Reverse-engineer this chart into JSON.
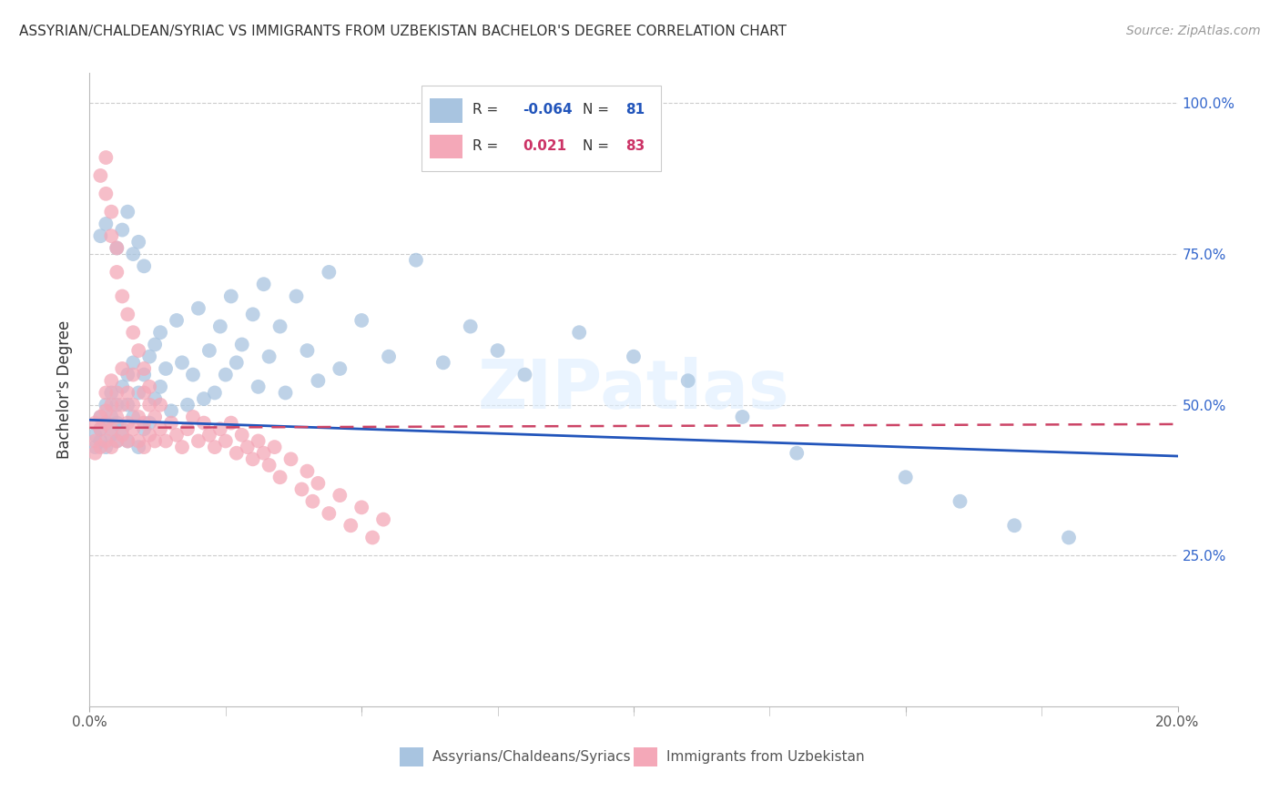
{
  "title": "ASSYRIAN/CHALDEAN/SYRIAC VS IMMIGRANTS FROM UZBEKISTAN BACHELOR'S DEGREE CORRELATION CHART",
  "source": "Source: ZipAtlas.com",
  "ylabel": "Bachelor's Degree",
  "blue_R": -0.064,
  "blue_N": 81,
  "pink_R": 0.021,
  "pink_N": 83,
  "blue_color": "#a8c4e0",
  "pink_color": "#f4a8b8",
  "blue_label": "Assyrians/Chaldeans/Syriacs",
  "pink_label": "Immigrants from Uzbekistan",
  "blue_line_color": "#2255bb",
  "pink_line_color": "#cc4466",
  "watermark": "ZIPatlas",
  "xlim": [
    0.0,
    0.2
  ],
  "ylim": [
    0.0,
    1.05
  ],
  "blue_x": [
    0.001,
    0.001,
    0.002,
    0.002,
    0.002,
    0.003,
    0.003,
    0.003,
    0.004,
    0.004,
    0.004,
    0.005,
    0.005,
    0.005,
    0.006,
    0.006,
    0.007,
    0.007,
    0.007,
    0.008,
    0.008,
    0.009,
    0.009,
    0.01,
    0.01,
    0.011,
    0.011,
    0.012,
    0.012,
    0.013,
    0.013,
    0.014,
    0.015,
    0.016,
    0.017,
    0.018,
    0.019,
    0.02,
    0.021,
    0.022,
    0.023,
    0.024,
    0.025,
    0.026,
    0.027,
    0.028,
    0.03,
    0.031,
    0.032,
    0.033,
    0.035,
    0.036,
    0.038,
    0.04,
    0.042,
    0.044,
    0.046,
    0.05,
    0.055,
    0.06,
    0.065,
    0.07,
    0.075,
    0.08,
    0.09,
    0.1,
    0.11,
    0.12,
    0.13,
    0.15,
    0.16,
    0.17,
    0.18,
    0.002,
    0.003,
    0.005,
    0.006,
    0.007,
    0.008,
    0.009,
    0.01
  ],
  "blue_y": [
    0.45,
    0.43,
    0.48,
    0.44,
    0.46,
    0.47,
    0.43,
    0.5,
    0.45,
    0.52,
    0.48,
    0.44,
    0.5,
    0.47,
    0.53,
    0.46,
    0.5,
    0.55,
    0.44,
    0.48,
    0.57,
    0.43,
    0.52,
    0.46,
    0.55,
    0.58,
    0.47,
    0.51,
    0.6,
    0.53,
    0.62,
    0.56,
    0.49,
    0.64,
    0.57,
    0.5,
    0.55,
    0.66,
    0.51,
    0.59,
    0.52,
    0.63,
    0.55,
    0.68,
    0.57,
    0.6,
    0.65,
    0.53,
    0.7,
    0.58,
    0.63,
    0.52,
    0.68,
    0.59,
    0.54,
    0.72,
    0.56,
    0.64,
    0.58,
    0.74,
    0.57,
    0.63,
    0.59,
    0.55,
    0.62,
    0.58,
    0.54,
    0.48,
    0.42,
    0.38,
    0.34,
    0.3,
    0.28,
    0.78,
    0.8,
    0.76,
    0.79,
    0.82,
    0.75,
    0.77,
    0.73
  ],
  "pink_x": [
    0.001,
    0.001,
    0.001,
    0.002,
    0.002,
    0.002,
    0.003,
    0.003,
    0.003,
    0.003,
    0.004,
    0.004,
    0.004,
    0.004,
    0.005,
    0.005,
    0.005,
    0.006,
    0.006,
    0.006,
    0.007,
    0.007,
    0.007,
    0.008,
    0.008,
    0.008,
    0.009,
    0.009,
    0.01,
    0.01,
    0.01,
    0.011,
    0.011,
    0.012,
    0.012,
    0.013,
    0.013,
    0.014,
    0.015,
    0.016,
    0.017,
    0.018,
    0.019,
    0.02,
    0.021,
    0.022,
    0.023,
    0.024,
    0.025,
    0.026,
    0.027,
    0.028,
    0.029,
    0.03,
    0.031,
    0.032,
    0.033,
    0.034,
    0.035,
    0.037,
    0.039,
    0.04,
    0.041,
    0.042,
    0.044,
    0.046,
    0.048,
    0.05,
    0.052,
    0.054,
    0.002,
    0.003,
    0.003,
    0.004,
    0.004,
    0.005,
    0.005,
    0.006,
    0.007,
    0.008,
    0.009,
    0.01,
    0.011
  ],
  "pink_y": [
    0.44,
    0.42,
    0.47,
    0.43,
    0.48,
    0.46,
    0.49,
    0.44,
    0.52,
    0.47,
    0.43,
    0.5,
    0.46,
    0.54,
    0.44,
    0.48,
    0.52,
    0.45,
    0.5,
    0.56,
    0.47,
    0.44,
    0.52,
    0.46,
    0.5,
    0.55,
    0.44,
    0.48,
    0.43,
    0.47,
    0.52,
    0.45,
    0.5,
    0.44,
    0.48,
    0.46,
    0.5,
    0.44,
    0.47,
    0.45,
    0.43,
    0.46,
    0.48,
    0.44,
    0.47,
    0.45,
    0.43,
    0.46,
    0.44,
    0.47,
    0.42,
    0.45,
    0.43,
    0.41,
    0.44,
    0.42,
    0.4,
    0.43,
    0.38,
    0.41,
    0.36,
    0.39,
    0.34,
    0.37,
    0.32,
    0.35,
    0.3,
    0.33,
    0.28,
    0.31,
    0.88,
    0.85,
    0.91,
    0.78,
    0.82,
    0.72,
    0.76,
    0.68,
    0.65,
    0.62,
    0.59,
    0.56,
    0.53
  ],
  "blue_line_x": [
    0.0,
    0.2
  ],
  "blue_line_y": [
    0.475,
    0.415
  ],
  "pink_line_x": [
    0.0,
    0.2
  ],
  "pink_line_y": [
    0.462,
    0.468
  ],
  "ytick_positions": [
    0.25,
    0.5,
    0.75,
    1.0
  ],
  "ytick_labels": [
    "25.0%",
    "50.0%",
    "75.0%",
    "100.0%"
  ],
  "xtick_positions": [
    0.0,
    0.05,
    0.1,
    0.15,
    0.2
  ],
  "xtick_labels": [
    "0.0%",
    "",
    "",
    "",
    "20.0%"
  ]
}
